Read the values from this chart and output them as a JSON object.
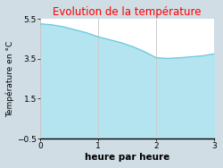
{
  "title": "Evolution de la température",
  "title_color": "#ff0000",
  "xlabel": "heure par heure",
  "ylabel": "Température en °C",
  "outer_bg_color": "#d0dde5",
  "plot_bg_color": "#ffffff",
  "line_color": "#6ac8de",
  "fill_color": "#b3e4f0",
  "xlim": [
    0,
    3
  ],
  "ylim": [
    -0.5,
    5.5
  ],
  "xticks": [
    0,
    1,
    2,
    3
  ],
  "yticks": [
    -0.5,
    1.5,
    3.5,
    5.5
  ],
  "x": [
    0,
    0.2,
    0.4,
    0.6,
    0.8,
    1.0,
    1.2,
    1.4,
    1.6,
    1.8,
    2.0,
    2.2,
    2.4,
    2.6,
    2.8,
    3.0
  ],
  "y": [
    5.25,
    5.2,
    5.1,
    4.95,
    4.8,
    4.6,
    4.45,
    4.3,
    4.1,
    3.85,
    3.55,
    3.52,
    3.55,
    3.6,
    3.65,
    3.75
  ],
  "title_fontsize": 8.5,
  "xlabel_fontsize": 7.5,
  "ylabel_fontsize": 6.5,
  "tick_fontsize": 6.5,
  "grid_color": "#cccccc",
  "spine_color": "#000000"
}
